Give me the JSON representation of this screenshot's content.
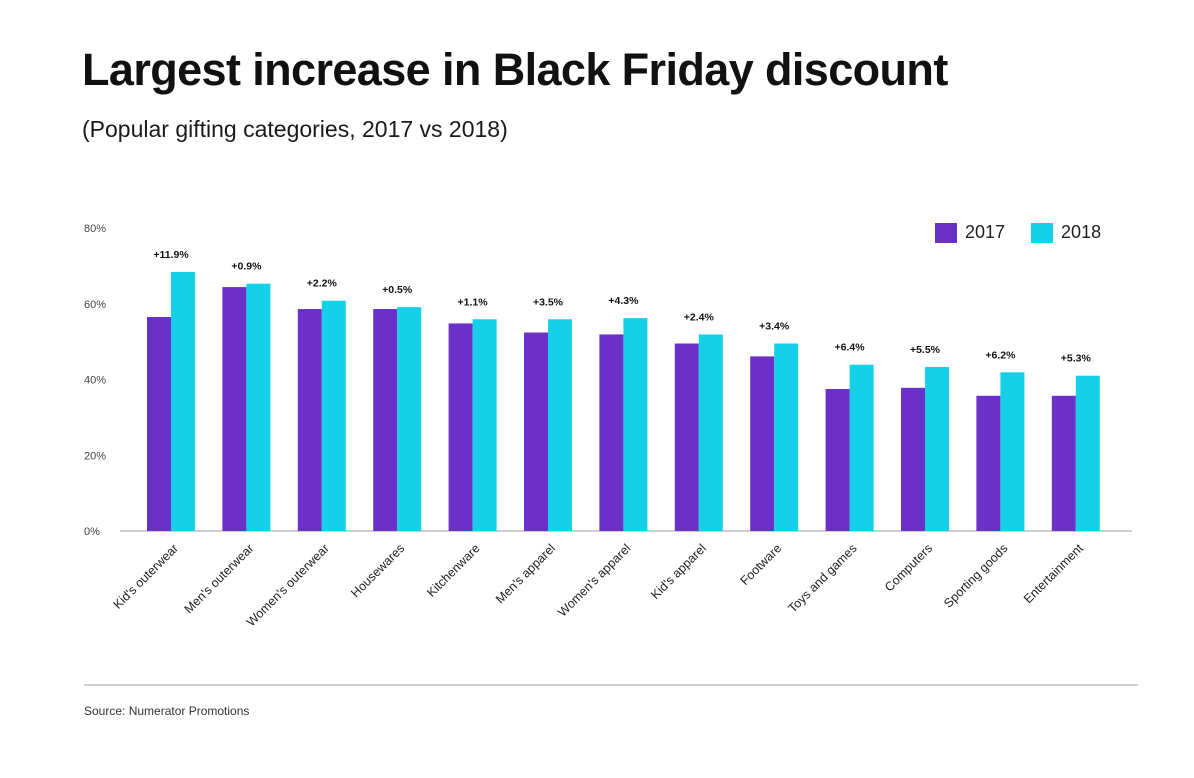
{
  "title": "Largest increase in Black Friday discount",
  "subtitle": "(Popular gifting categories, 2017 vs 2018)",
  "source": "Source: Numerator Promotions",
  "colors": {
    "s2017": "#6a30c7",
    "s2018": "#16cfe9",
    "axis": "#bdbdbd",
    "text": "#111111"
  },
  "legend": [
    {
      "label": "2017",
      "color": "#6a30c7"
    },
    {
      "label": "2018",
      "color": "#16cfe9"
    }
  ],
  "chart_data": {
    "type": "bar",
    "title": "Largest increase in Black Friday discount",
    "subtitle": "(Popular gifting categories, 2017 vs 2018)",
    "categories": [
      "Kid's outerwear",
      "Men's outerwear",
      "Women's outerwear",
      "Housewares",
      "Kitchenware",
      "Men's apparel",
      "Women's apparel",
      "Kid's apparel",
      "Footware",
      "Toys and games",
      "Computers",
      "Sporting goods",
      "Entertainment"
    ],
    "series": [
      {
        "name": "2017",
        "values": [
          56.5,
          64.4,
          58.6,
          58.6,
          54.8,
          52.4,
          51.9,
          49.5,
          46.1,
          37.5,
          37.8,
          35.7,
          35.7
        ]
      },
      {
        "name": "2018",
        "values": [
          68.4,
          65.3,
          60.8,
          59.1,
          55.9,
          55.9,
          56.2,
          51.9,
          49.5,
          43.9,
          43.3,
          41.9,
          41.0
        ]
      }
    ],
    "annotations": [
      "+11.9%",
      "+0.9%",
      "+2.2%",
      "+0.5%",
      "+1.1%",
      "+3.5%",
      "+4.3%",
      "+2.4%",
      "+3.4%",
      "+6.4%",
      "+5.5%",
      "+6.2%",
      "+5.3%"
    ],
    "yticks": [
      "0%",
      "20%",
      "40%",
      "60%",
      "80%"
    ],
    "ylim": [
      0,
      80
    ],
    "xlabel": "",
    "ylabel": "",
    "grid": false,
    "legend_position": "top-right"
  }
}
